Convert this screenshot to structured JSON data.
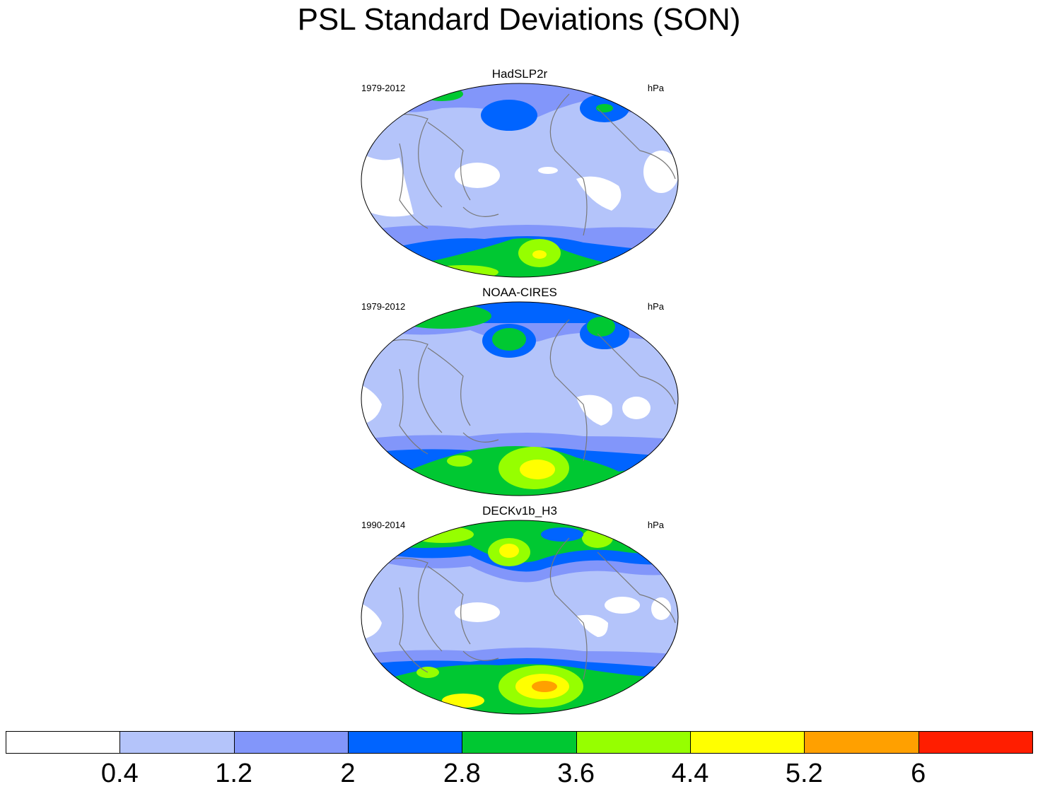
{
  "title": "PSL Standard Deviations (SON)",
  "panels": [
    {
      "name": "HadSLP2r",
      "period": "1979-2012",
      "units": "hPa",
      "top": 95
    },
    {
      "name": "NOAA-CIRES",
      "period": "1979-2012",
      "units": "hPa",
      "top": 404
    },
    {
      "name": "DECKv1b_H3",
      "period": "1990-2014",
      "units": "hPa",
      "top": 713
    }
  ],
  "colorbar": {
    "colors": [
      "#ffffff",
      "#b4c4fa",
      "#8296fa",
      "#0064ff",
      "#00c832",
      "#96ff00",
      "#ffff00",
      "#ffa000",
      "#ff1e00"
    ],
    "labels": [
      "0.4",
      "1.2",
      "2",
      "2.8",
      "3.6",
      "4.4",
      "5.2",
      "6"
    ]
  }
}
